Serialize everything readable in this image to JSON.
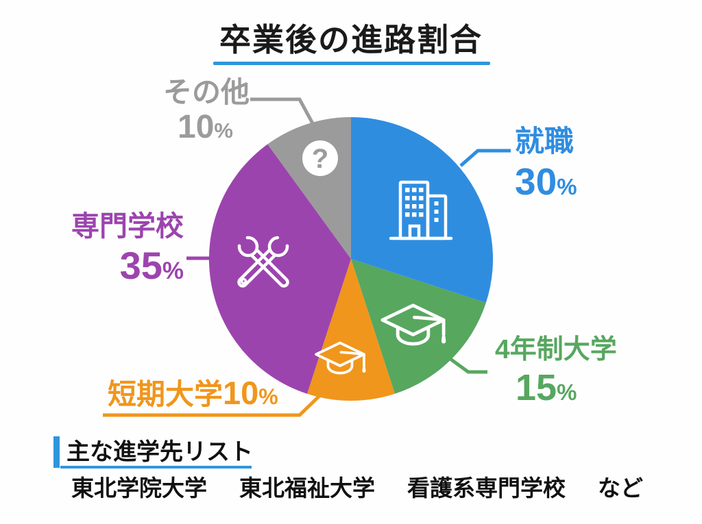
{
  "title": "卒業後の進路割合",
  "accent_color": "#2e96db",
  "chart_data": {
    "type": "pie",
    "title": "卒業後の進路割合",
    "start_angle_deg": 0,
    "direction": "clockwise",
    "total": 100,
    "slices": [
      {
        "label": "就職",
        "value": 30,
        "unit": "%",
        "color": "#2f8de0",
        "icon": "office-building-icon"
      },
      {
        "label": "4年制大学",
        "value": 15,
        "unit": "%",
        "color": "#57a75f",
        "icon": "graduation-cap-icon"
      },
      {
        "label": "短期大学",
        "value": 10,
        "unit": "%",
        "color": "#f0961c",
        "icon": "graduation-cap-icon"
      },
      {
        "label": "専門学校",
        "value": 35,
        "unit": "%",
        "color": "#9c44ae",
        "icon": "crossed-wrenches-icon"
      },
      {
        "label": "その他",
        "value": 10,
        "unit": "%",
        "color": "#9b9b9b",
        "icon": "question-mark-icon",
        "icon_glyph": "?"
      }
    ]
  },
  "footer": {
    "heading": "主な進学先リスト",
    "items": [
      "東北学院大学",
      "東北福祉大学",
      "看護系専門学校",
      "など"
    ]
  }
}
